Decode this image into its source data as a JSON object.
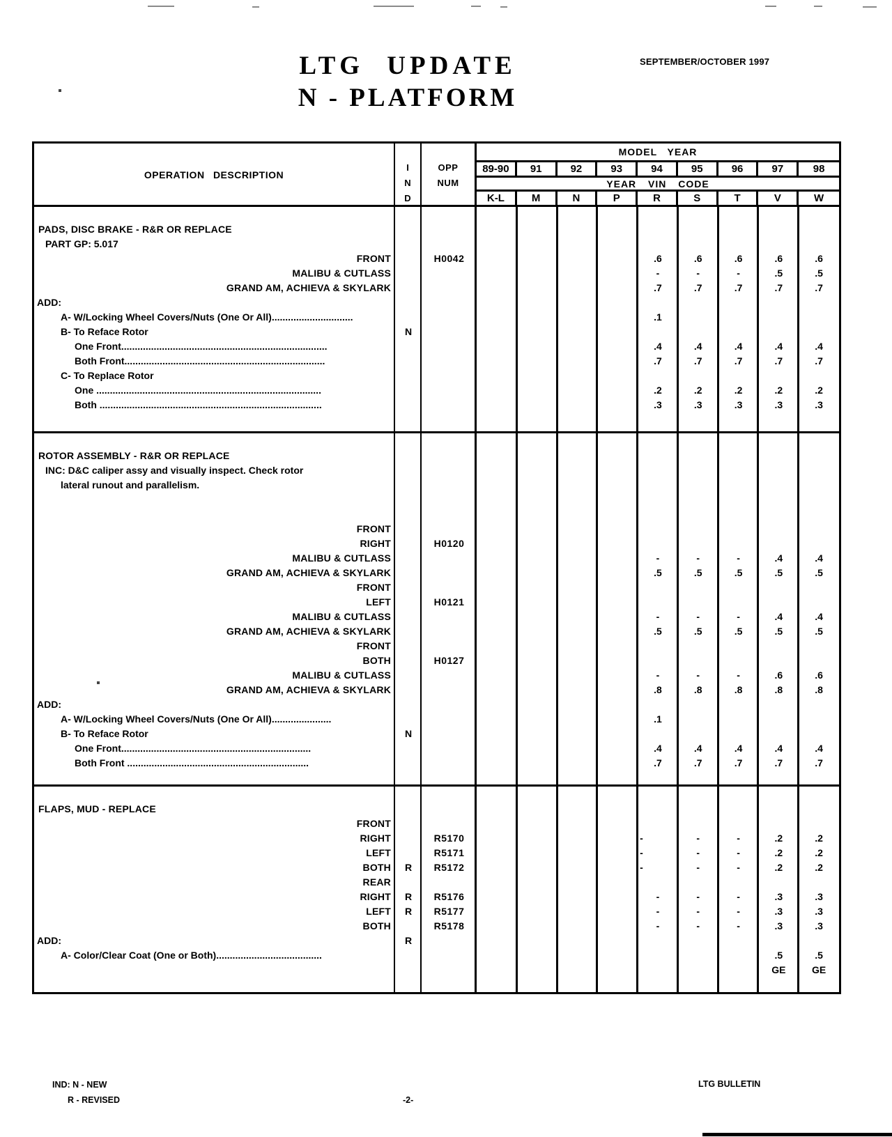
{
  "colors": {
    "ink": "#000000",
    "paper": "#ffffff"
  },
  "page": {
    "title_line1": "LTG  UPDATE",
    "title_line2": "N - PLATFORM",
    "date": "SEPTEMBER/OCTOBER 1997"
  },
  "footer": {
    "ind_legend1": "IND: N - NEW",
    "ind_legend2": "R - REVISED",
    "page_number": "-2-",
    "bulletin": "LTG BULLETIN"
  },
  "table": {
    "header": {
      "op_desc": "OPERATION  DESCRIPTION",
      "ind": [
        "I",
        "N",
        "D"
      ],
      "opp": [
        "OPP",
        "NUM"
      ],
      "model_year": "MODEL  YEAR",
      "years": [
        "89-90",
        "91",
        "92",
        "93",
        "94",
        "95",
        "96",
        "97",
        "98"
      ],
      "vin_code": "YEAR  VIN  CODE",
      "vin": [
        "K-L",
        "M",
        "N",
        "P",
        "R",
        "S",
        "T",
        "V",
        "W"
      ]
    },
    "sections": [
      {
        "name": "section-pads-disc-brake",
        "rows": [
          {
            "d": "PADS, DISC BRAKE - R&R OR REPLACE",
            "c": "h"
          },
          {
            "d": "PART GP: 5.017",
            "c": "sub"
          },
          {
            "d": "FRONT",
            "c": "r",
            "opp": "H0042",
            "vals": [
              "",
              "",
              "",
              "",
              ".6",
              ".6",
              ".6",
              ".6",
              ".6"
            ]
          },
          {
            "d": "MALIBU & CUTLASS",
            "c": "r",
            "vals": [
              "",
              "",
              "",
              "",
              "-",
              "-",
              "-",
              ".5",
              ".5"
            ]
          },
          {
            "d": "GRAND AM, ACHIEVA & SKYLARK",
            "c": "r",
            "vals": [
              "",
              "",
              "",
              "",
              ".7",
              ".7",
              ".7",
              ".7",
              ".7"
            ]
          },
          {
            "d": "ADD:",
            "c": "add"
          },
          {
            "d": "A- W/Locking Wheel Covers/Nuts (One Or All)..............................",
            "c": "a1",
            "vals": [
              "",
              "",
              "",
              "",
              ".1",
              "",
              "",
              "",
              ""
            ]
          },
          {
            "d": "B- To Reface Rotor",
            "c": "a1",
            "ind": "N"
          },
          {
            "d": "One Front............................................................................",
            "c": "a2",
            "vals": [
              "",
              "",
              "",
              "",
              ".4",
              ".4",
              ".4",
              ".4",
              ".4"
            ]
          },
          {
            "d": "Both Front..........................................................................",
            "c": "a2",
            "vals": [
              "",
              "",
              "",
              "",
              ".7",
              ".7",
              ".7",
              ".7",
              ".7"
            ]
          },
          {
            "d": "C- To Replace Rotor",
            "c": "a1"
          },
          {
            "d": "One ...................................................................................",
            "c": "a2",
            "vals": [
              "",
              "",
              "",
              "",
              ".2",
              ".2",
              ".2",
              ".2",
              ".2"
            ]
          },
          {
            "d": "Both ..................................................................................",
            "c": "a2",
            "vals": [
              "",
              "",
              "",
              "",
              ".3",
              ".3",
              ".3",
              ".3",
              ".3"
            ]
          }
        ]
      },
      {
        "name": "section-rotor-assembly",
        "rows": [
          {
            "d": "ROTOR ASSEMBLY - R&R OR REPLACE",
            "c": "h"
          },
          {
            "d": "INC: D&C caliper assy and visually inspect. Check rotor",
            "c": "sub"
          },
          {
            "d": "lateral runout and parallelism.",
            "c": "sub2"
          },
          {
            "d": ""
          },
          {
            "d": ""
          },
          {
            "d": "FRONT",
            "c": "r"
          },
          {
            "d": "RIGHT",
            "c": "r",
            "opp": "H0120"
          },
          {
            "d": "MALIBU & CUTLASS",
            "c": "r",
            "vals": [
              "",
              "",
              "",
              "",
              "-",
              "-",
              "-",
              ".4",
              ".4"
            ]
          },
          {
            "d": "GRAND AM, ACHIEVA & SKYLARK",
            "c": "r",
            "vals": [
              "",
              "",
              "",
              "",
              ".5",
              ".5",
              ".5",
              ".5",
              ".5"
            ]
          },
          {
            "d": "FRONT",
            "c": "r"
          },
          {
            "d": "LEFT",
            "c": "r",
            "opp": "H0121"
          },
          {
            "d": "MALIBU & CUTLASS",
            "c": "r",
            "vals": [
              "",
              "",
              "",
              "",
              "-",
              "-",
              "-",
              ".4",
              ".4"
            ]
          },
          {
            "d": "GRAND AM, ACHIEVA & SKYLARK",
            "c": "r",
            "vals": [
              "",
              "",
              "",
              "",
              ".5",
              ".5",
              ".5",
              ".5",
              ".5"
            ]
          },
          {
            "d": "FRONT",
            "c": "r"
          },
          {
            "d": "BOTH",
            "c": "r",
            "opp": "H0127"
          },
          {
            "d": "MALIBU & CUTLASS",
            "c": "r",
            "vals": [
              "",
              "",
              "",
              "",
              "-",
              "-",
              "-",
              ".6",
              ".6"
            ]
          },
          {
            "d": "GRAND AM, ACHIEVA & SKYLARK",
            "c": "r",
            "vals": [
              "",
              "",
              "",
              "",
              ".8",
              ".8",
              ".8",
              ".8",
              ".8"
            ]
          },
          {
            "d": "ADD:",
            "c": "add"
          },
          {
            "d": "A- W/Locking Wheel Covers/Nuts (One Or All)......................",
            "c": "a1",
            "vals": [
              "",
              "",
              "",
              "",
              ".1",
              "",
              "",
              "",
              ""
            ]
          },
          {
            "d": "B- To Reface Rotor",
            "c": "a1",
            "ind": "N"
          },
          {
            "d": "One Front......................................................................",
            "c": "a2",
            "vals": [
              "",
              "",
              "",
              "",
              ".4",
              ".4",
              ".4",
              ".4",
              ".4"
            ]
          },
          {
            "d": "Both Front ...................................................................",
            "c": "a2",
            "vals": [
              "",
              "",
              "",
              "",
              ".7",
              ".7",
              ".7",
              ".7",
              ".7"
            ]
          }
        ]
      },
      {
        "name": "section-flaps-mud",
        "rows": [
          {
            "d": "FLAPS, MUD - REPLACE",
            "c": "h"
          },
          {
            "d": "FRONT",
            "c": "r"
          },
          {
            "d": "RIGHT",
            "c": "r",
            "opp": "R5170",
            "dl": true,
            "vals": [
              "",
              "",
              "",
              "",
              "-",
              "-",
              "-",
              ".2",
              ".2"
            ]
          },
          {
            "d": "LEFT",
            "c": "r",
            "opp": "R5171",
            "dl": true,
            "vals": [
              "",
              "",
              "",
              "",
              "-",
              "-",
              "-",
              ".2",
              ".2"
            ]
          },
          {
            "d": "BOTH",
            "c": "r",
            "ind": "R",
            "opp": "R5172",
            "dl": true,
            "vals": [
              "",
              "",
              "",
              "",
              "-",
              "-",
              "-",
              ".2",
              ".2"
            ]
          },
          {
            "d": "REAR",
            "c": "r"
          },
          {
            "d": "RIGHT",
            "c": "r",
            "ind": "R",
            "opp": "R5176",
            "vals": [
              "",
              "",
              "",
              "",
              "-",
              "-",
              "-",
              ".3",
              ".3"
            ]
          },
          {
            "d": "LEFT",
            "c": "r",
            "ind": "R",
            "opp": "R5177",
            "vals": [
              "",
              "",
              "",
              "",
              "-",
              "-",
              "-",
              ".3",
              ".3"
            ]
          },
          {
            "d": "BOTH",
            "c": "r",
            "opp": "R5178",
            "vals": [
              "",
              "",
              "",
              "",
              "-",
              "-",
              "-",
              ".3",
              ".3"
            ]
          },
          {
            "d": "ADD:",
            "c": "add",
            "ind": "R"
          },
          {
            "d": "A- Color/Clear Coat (One or Both).......................................",
            "c": "a1",
            "vals": [
              "",
              "",
              "",
              "",
              "",
              "",
              "",
              ".5",
              ".5"
            ]
          },
          {
            "d": "",
            "vals": [
              "",
              "",
              "",
              "",
              "",
              "",
              "",
              "GE",
              "GE"
            ]
          }
        ]
      }
    ]
  }
}
